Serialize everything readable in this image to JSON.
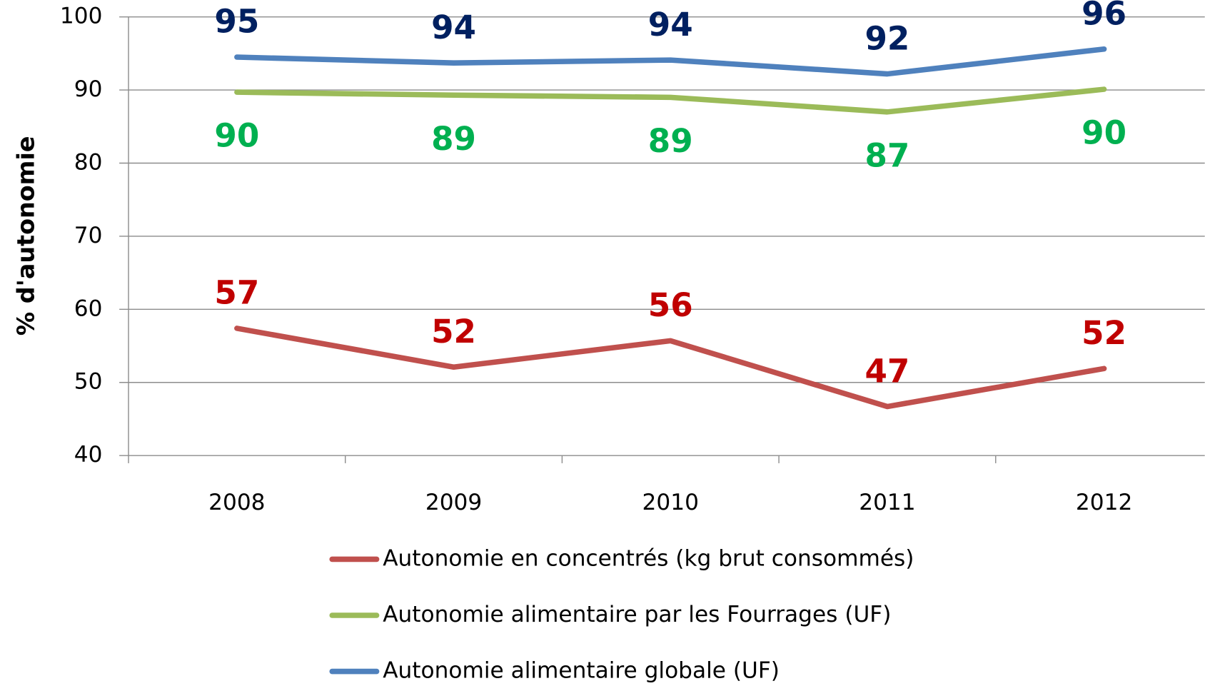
{
  "chart_data": {
    "type": "line",
    "y_label": "% d'autonomie",
    "categories": [
      "2008",
      "2009",
      "2010",
      "2011",
      "2012"
    ],
    "series": [
      {
        "name": "Autonomie en concentrés (kg brut consommés)",
        "color": "#c0504d",
        "label_color": "#c00000",
        "label_position": "above",
        "values": [
          57.4,
          52.1,
          55.7,
          46.7,
          51.9
        ],
        "value_labels": [
          "57",
          "52",
          "56",
          "47",
          "52"
        ]
      },
      {
        "name": "Autonomie alimentaire par les Fourrages (UF)",
        "color": "#9bbb59",
        "label_color": "#00b050",
        "label_position": "below",
        "values": [
          89.7,
          89.3,
          89.0,
          87.0,
          90.1
        ],
        "value_labels": [
          "90",
          "89",
          "89",
          "87",
          "90"
        ]
      },
      {
        "name": "Autonomie alimentaire globale (UF)",
        "color": "#4f81bd",
        "label_color": "#002060",
        "label_position": "above",
        "values": [
          94.5,
          93.7,
          94.1,
          92.2,
          95.6
        ],
        "value_labels": [
          "95",
          "94",
          "94",
          "92",
          "96"
        ]
      }
    ],
    "ylim": [
      40,
      100
    ],
    "yticks": [
      40,
      50,
      60,
      70,
      80,
      90,
      100
    ],
    "grid": true,
    "legend": "bottom"
  }
}
